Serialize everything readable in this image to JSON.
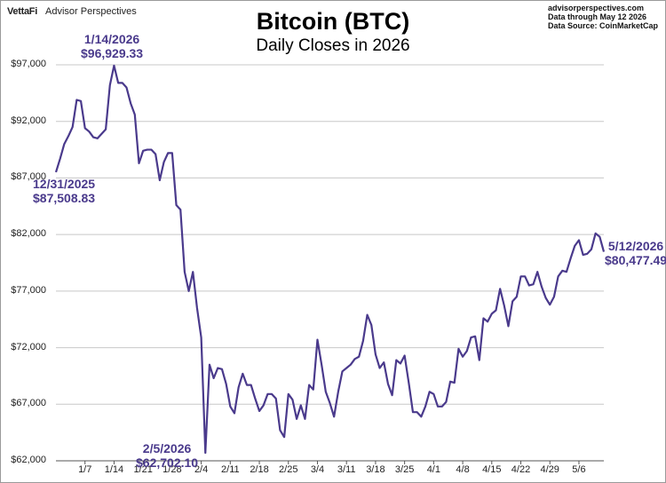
{
  "header": {
    "brand": "VettaFi",
    "brand_sub": "Advisor Perspectives",
    "source_lines": [
      "advisorperspectives.com",
      "Data through May 12 2026",
      "Data Source: CoinMarketCap"
    ]
  },
  "colors": {
    "line": "#4a3a8c",
    "grid": "#c8c8c8",
    "axis": "#555555"
  },
  "chart_data": {
    "type": "line",
    "title": "Bitcoin (BTC)",
    "subtitle": "Daily Closes in 2026",
    "xlabel": "",
    "ylabel": "",
    "ylim": [
      62000,
      97000
    ],
    "yticks": [
      {
        "value": 62000,
        "label": "$62,000"
      },
      {
        "value": 67000,
        "label": "$67,000"
      },
      {
        "value": 72000,
        "label": "$72,000"
      },
      {
        "value": 77000,
        "label": "$77,000"
      },
      {
        "value": 82000,
        "label": "$82,000"
      },
      {
        "value": 87000,
        "label": "$87,000"
      },
      {
        "value": 92000,
        "label": "$92,000"
      },
      {
        "value": 97000,
        "label": "$97,000"
      }
    ],
    "x_start": "2025-12-31",
    "xticks": [
      {
        "date": "2026-01-07",
        "label": "1/7"
      },
      {
        "date": "2026-01-14",
        "label": "1/14"
      },
      {
        "date": "2026-01-21",
        "label": "1/21"
      },
      {
        "date": "2026-01-28",
        "label": "1/28"
      },
      {
        "date": "2026-02-04",
        "label": "2/4"
      },
      {
        "date": "2026-02-11",
        "label": "2/11"
      },
      {
        "date": "2026-02-18",
        "label": "2/18"
      },
      {
        "date": "2026-02-25",
        "label": "2/25"
      },
      {
        "date": "2026-03-04",
        "label": "3/4"
      },
      {
        "date": "2026-03-11",
        "label": "3/11"
      },
      {
        "date": "2026-03-18",
        "label": "3/18"
      },
      {
        "date": "2026-03-25",
        "label": "3/25"
      },
      {
        "date": "2026-04-01",
        "label": "4/1"
      },
      {
        "date": "2026-04-08",
        "label": "4/8"
      },
      {
        "date": "2026-04-15",
        "label": "4/15"
      },
      {
        "date": "2026-04-22",
        "label": "4/22"
      },
      {
        "date": "2026-04-29",
        "label": "4/29"
      },
      {
        "date": "2026-05-06",
        "label": "5/6"
      }
    ],
    "series": [
      {
        "values": [
          87508.83,
          88700,
          90000,
          90700,
          91500,
          93900,
          93800,
          91400,
          91100,
          90600,
          90500,
          90900,
          91300,
          95200,
          96929.33,
          95400,
          95400,
          95000,
          93600,
          92600,
          88300,
          89400,
          89500,
          89500,
          89100,
          86800,
          88400,
          89200,
          89200,
          84600,
          84200,
          78700,
          77000,
          78700,
          75500,
          72900,
          62702.1,
          70500,
          69300,
          70200,
          70100,
          68800,
          66800,
          66200,
          68500,
          69700,
          68700,
          68700,
          67500,
          66400,
          66900,
          67900,
          67900,
          67500,
          64700,
          64100,
          67900,
          67400,
          65700,
          66900,
          65700,
          68700,
          68300,
          72700,
          70500,
          68100,
          67100,
          65900,
          68100,
          69900,
          70200,
          70500,
          71000,
          71200,
          72600,
          74900,
          74000,
          71400,
          70200,
          70700,
          68800,
          67800,
          70900,
          70600,
          71300,
          68900,
          66300,
          66300,
          65900,
          66800,
          68100,
          67900,
          66800,
          66800,
          67200,
          69000,
          68900,
          71900,
          71200,
          71700,
          72900,
          73000,
          70900,
          74600,
          74300,
          75000,
          75300,
          77200,
          75700,
          73900,
          76100,
          76500,
          78300,
          78300,
          77500,
          77600,
          78700,
          77400,
          76400,
          75800,
          76500,
          78300,
          78800,
          78700,
          79900,
          81000,
          81500,
          80200,
          80300,
          80700,
          82100,
          81800,
          80477.49
        ]
      }
    ],
    "annotations": [
      {
        "date_line": "12/31/2025",
        "value_line": "$87,508.83"
      },
      {
        "date_line": "1/14/2026",
        "value_line": "$96,929.33"
      },
      {
        "date_line": "2/5/2026",
        "value_line": "$62,702.10"
      },
      {
        "date_line": "5/12/2026",
        "value_line": "$80,477.49"
      }
    ]
  }
}
